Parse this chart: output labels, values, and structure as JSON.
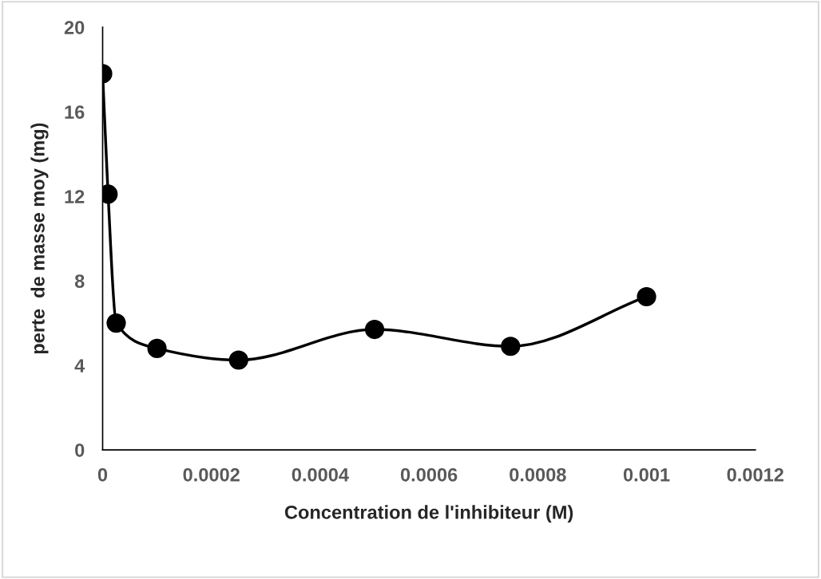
{
  "chart_data": {
    "type": "line",
    "xlabel": "Concentration de l'inhibiteur (M)",
    "ylabel": "perte  de masse moy (mg)",
    "x": [
      0,
      1e-05,
      2.5e-05,
      0.0001,
      0.00025,
      0.0005,
      0.00075,
      0.001
    ],
    "series": [
      {
        "color": "#000000",
        "values": [
          17.8,
          12.1,
          6.0,
          4.8,
          4.25,
          5.7,
          4.9,
          7.25
        ]
      }
    ],
    "xlim": [
      0,
      0.0012
    ],
    "xticks": [
      0,
      0.0002,
      0.0004,
      0.0006,
      0.0008,
      0.001,
      0.0012
    ],
    "ylim": [
      0,
      20
    ],
    "yticks": [
      0,
      4,
      8,
      12,
      16,
      20
    ],
    "marker": "circle",
    "line_style": "solid",
    "grid": false,
    "legend": false
  }
}
